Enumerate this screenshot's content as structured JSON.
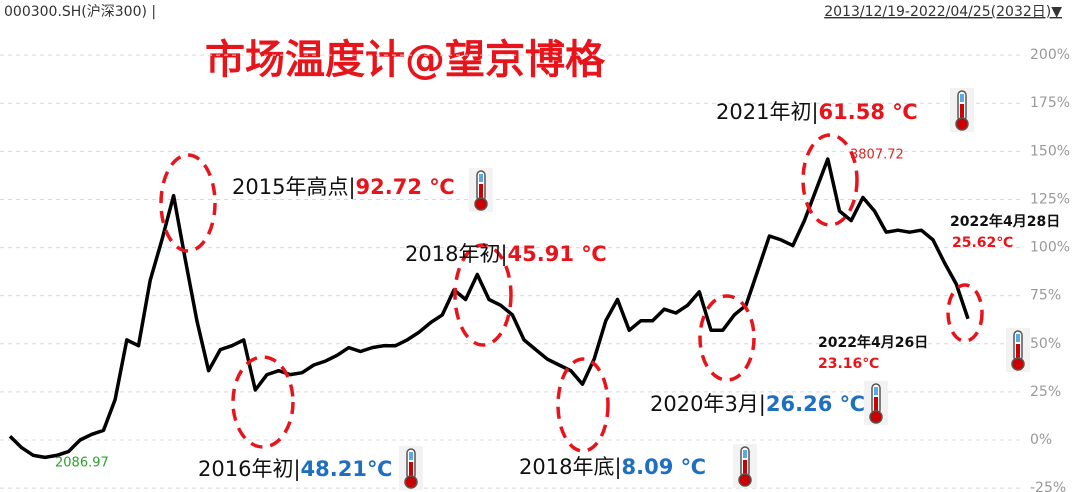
{
  "header": {
    "left": "000300.SH(沪深300) |",
    "right": "2013/12/19-2022/04/25(2032日)▼"
  },
  "chart_data": {
    "type": "line",
    "title": "市场温度计@望京博格",
    "color": "#000000",
    "values": [
      2,
      -4,
      -8,
      -9,
      -8,
      -6,
      0,
      3,
      5,
      21,
      52,
      49,
      83,
      104,
      127,
      94,
      62,
      36,
      47,
      49,
      52,
      26,
      34,
      36,
      34,
      35,
      39,
      41,
      44,
      48,
      46,
      48,
      49,
      49,
      52,
      56,
      61,
      65,
      78,
      73,
      86,
      73,
      70,
      65,
      52,
      47,
      42,
      39,
      36,
      29,
      42,
      62,
      73,
      57,
      62,
      62,
      68,
      66,
      70,
      77,
      57,
      57,
      65,
      70,
      88,
      106,
      104,
      101,
      114,
      130,
      146,
      119,
      114,
      126,
      119,
      108,
      109,
      108,
      109,
      104,
      92,
      81,
      63
    ],
    "ylim": [
      -27,
      212
    ],
    "yticks": [
      {
        "value": -25,
        "label": "-25%"
      },
      {
        "value": 0,
        "label": "0%"
      },
      {
        "value": 25,
        "label": "25%"
      },
      {
        "value": 50,
        "label": "50%"
      },
      {
        "value": 75,
        "label": "75%"
      },
      {
        "value": 100,
        "label": "100%"
      },
      {
        "value": 125,
        "label": "125%"
      },
      {
        "value": 150,
        "label": "150%"
      },
      {
        "value": 175,
        "label": "175%"
      },
      {
        "value": 200,
        "label": "200%"
      }
    ],
    "grid": true,
    "point_labels": [
      {
        "label": "3807.72",
        "color": "#d62728"
      },
      {
        "label": "2086.97",
        "color": "#2ca02c"
      }
    ],
    "annotations": [
      {
        "label": "2015年高点|",
        "temperature": "92.72 ℃",
        "color": "#e8141b"
      },
      {
        "label": "2016年初|",
        "temperature": "48.21℃",
        "color": "#1f6fc0"
      },
      {
        "label": "2018年初|",
        "temperature": "45.91 ℃",
        "color": "#e8141b"
      },
      {
        "label": "2018年底|",
        "temperature": "8.09 ℃",
        "color": "#1f6fc0"
      },
      {
        "label": "2020年3月|",
        "temperature": "26.26 ℃",
        "color": "#1f6fc0"
      },
      {
        "label": "2021年初|",
        "temperature": "61.58 ℃",
        "color": "#e8141b"
      }
    ],
    "latest": [
      {
        "date": "2022年4月28日",
        "temperature": "25.62℃"
      },
      {
        "date": "2022年4月26日",
        "temperature": "23.16℃"
      }
    ]
  }
}
